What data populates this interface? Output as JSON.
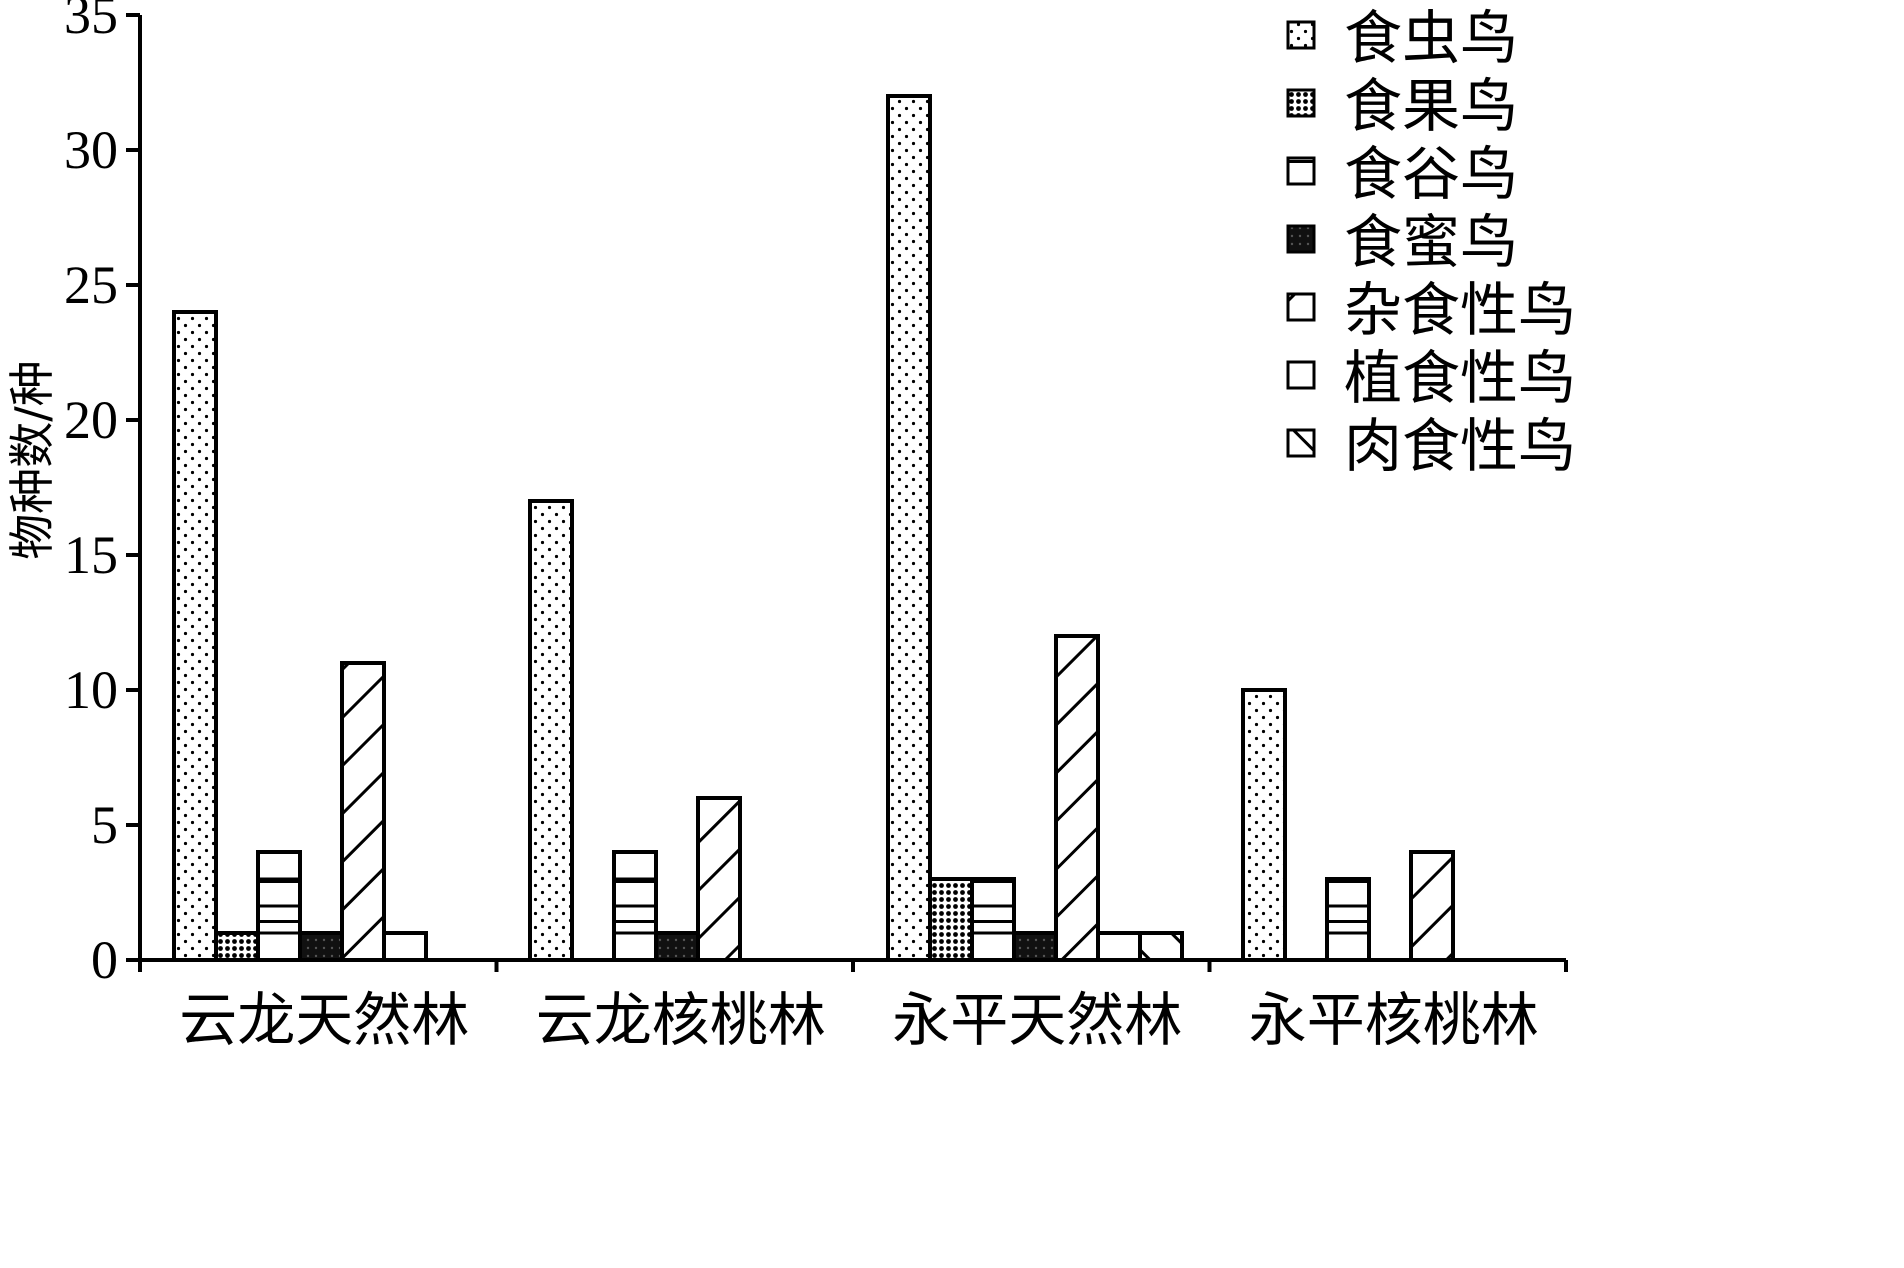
{
  "chart_data": {
    "type": "bar",
    "title": "",
    "xlabel": "",
    "ylabel": "物种数/种",
    "ylim": [
      0,
      35
    ],
    "yticks": [
      0,
      5,
      10,
      15,
      20,
      25,
      30,
      35
    ],
    "legend_position": "top-right",
    "categories": [
      "云龙天然林",
      "云龙核桃林",
      "永平天然林",
      "永平核桃林"
    ],
    "series": [
      {
        "name": "食虫鸟",
        "pattern": "dots",
        "values": [
          24,
          17,
          32,
          10
        ]
      },
      {
        "name": "食果鸟",
        "pattern": "dense-dots",
        "values": [
          1,
          0,
          3,
          0
        ]
      },
      {
        "name": "食谷鸟",
        "pattern": "horizontal-lines",
        "values": [
          4,
          4,
          3,
          3
        ]
      },
      {
        "name": "食蜜鸟",
        "pattern": "dark-fill",
        "values": [
          1,
          1,
          1,
          0
        ]
      },
      {
        "name": "杂食性鸟",
        "pattern": "diagonal-up",
        "values": [
          11,
          6,
          12,
          4
        ]
      },
      {
        "name": "植食性鸟",
        "pattern": "empty",
        "values": [
          1,
          0,
          1,
          0
        ]
      },
      {
        "name": "肉食性鸟",
        "pattern": "diagonal-down",
        "values": [
          0,
          0,
          1,
          0
        ]
      }
    ]
  }
}
